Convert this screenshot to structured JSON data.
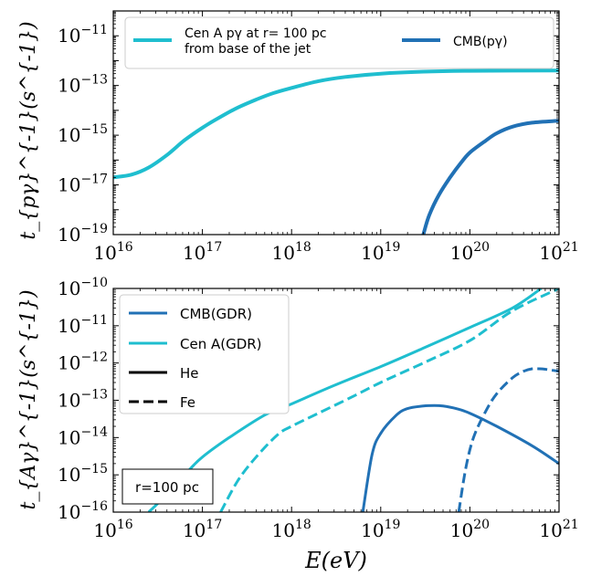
{
  "colors": {
    "cmb": "#2171b5",
    "cena": "#1fbecf",
    "axis": "#000000"
  },
  "chart_data": [
    {
      "type": "line",
      "panel": "top",
      "xscale": "log",
      "yscale": "log",
      "xlim": [
        1e+16,
        1e+21
      ],
      "ylim": [
        1e-19,
        1e-10
      ],
      "ylabel": "t_{pγ}^{-1}(s^{-1})",
      "x_ticks": [
        {
          "base": "10",
          "exp": "16"
        },
        {
          "base": "10",
          "exp": "17"
        },
        {
          "base": "10",
          "exp": "18"
        },
        {
          "base": "10",
          "exp": "19"
        },
        {
          "base": "10",
          "exp": "20"
        },
        {
          "base": "10",
          "exp": "21"
        }
      ],
      "y_ticks": [
        {
          "base": "10",
          "exp": "−19"
        },
        {
          "base": "10",
          "exp": "−17"
        },
        {
          "base": "10",
          "exp": "−15"
        },
        {
          "base": "10",
          "exp": "−13"
        },
        {
          "base": "10",
          "exp": "−11"
        }
      ],
      "legend": {
        "placement": "top",
        "entries": [
          {
            "label": "Cen A pγ at r= 100 pc",
            "label2": "from base of the jet",
            "color": "cena"
          },
          {
            "label": "CMB(pγ)",
            "color": "cmb"
          }
        ]
      },
      "series": [
        {
          "name": "Cen A pγ at r= 100 pc from base of the jet",
          "color": "cena",
          "dash": "solid",
          "x": [
            1e+16,
            1.6e+16,
            2.5e+16,
            4e+16,
            6.3e+16,
            1e+17,
            1.6e+17,
            2.5e+17,
            4e+17,
            6.3e+17,
            1e+18,
            2e+18,
            4e+18,
            1e+19,
            3e+19,
            1e+20,
            1e+21
          ],
          "y": [
            2e-17,
            2.6e-17,
            5e-17,
            1.6e-16,
            6.3e-16,
            2e-15,
            5.5e-15,
            1.3e-14,
            2.7e-14,
            5e-14,
            8e-14,
            1.5e-13,
            2.2e-13,
            3e-13,
            3.6e-13,
            3.9e-13,
            4e-13
          ]
        },
        {
          "name": "CMB(pγ)",
          "color": "cmb",
          "dash": "solid",
          "x": [
            3e+19,
            3.5e+19,
            4.5e+19,
            6e+19,
            8e+19,
            1e+20,
            1.5e+20,
            2e+20,
            3e+20,
            5e+20,
            1e+21
          ],
          "y": [
            1e-19,
            6e-19,
            4e-18,
            2e-17,
            8e-17,
            2e-16,
            6e-16,
            1.2e-15,
            2.2e-15,
            3.2e-15,
            3.8e-15
          ]
        }
      ]
    },
    {
      "type": "line",
      "panel": "bottom",
      "xscale": "log",
      "yscale": "log",
      "xlim": [
        1e+16,
        1e+21
      ],
      "ylim": [
        1e-16,
        1e-10
      ],
      "xlabel": "E(eV)",
      "ylabel": "t_{Aγ}^{-1}(s^{-1})",
      "x_ticks": [
        {
          "base": "10",
          "exp": "16"
        },
        {
          "base": "10",
          "exp": "17"
        },
        {
          "base": "10",
          "exp": "18"
        },
        {
          "base": "10",
          "exp": "19"
        },
        {
          "base": "10",
          "exp": "20"
        },
        {
          "base": "10",
          "exp": "21"
        }
      ],
      "y_ticks": [
        {
          "base": "10",
          "exp": "−16"
        },
        {
          "base": "10",
          "exp": "−15"
        },
        {
          "base": "10",
          "exp": "−14"
        },
        {
          "base": "10",
          "exp": "−13"
        },
        {
          "base": "10",
          "exp": "−12"
        },
        {
          "base": "10",
          "exp": "−11"
        },
        {
          "base": "10",
          "exp": "−10"
        }
      ],
      "legend": {
        "placement": "top-left",
        "entries": [
          {
            "label": "CMB(GDR)",
            "color": "cmb",
            "dash": "solid"
          },
          {
            "label": "Cen A(GDR)",
            "color": "cena",
            "dash": "solid"
          },
          {
            "label": "He",
            "color": "axis",
            "dash": "solid"
          },
          {
            "label": "Fe",
            "color": "axis",
            "dash": "dashed"
          }
        ]
      },
      "annotation": "r=100 pc",
      "series": [
        {
          "name": "Cen A He",
          "color": "cena",
          "dash": "solid",
          "x": [
            2.5e+16,
            4e+16,
            7e+16,
            1e+17,
            2e+17,
            5e+17,
            1e+18,
            3e+18,
            1e+19,
            3e+19,
            1e+20,
            3e+20,
            6.3e+20
          ],
          "y": [
            1e-16,
            3e-16,
            1.3e-15,
            3e-15,
            1e-14,
            4e-14,
            8e-14,
            2.5e-13,
            8e-13,
            2.5e-12,
            9e-12,
            3e-11,
            1e-10
          ]
        },
        {
          "name": "Cen A Fe",
          "color": "cena",
          "dash": "dashed",
          "x": [
            1.6e+17,
            2.5e+17,
            4e+17,
            7e+17,
            1e+18,
            2e+18,
            5e+18,
            1e+19,
            3e+19,
            1e+20,
            3e+20,
            1e+21
          ],
          "y": [
            1e-16,
            7e-16,
            3e-15,
            1.2e-14,
            2e-14,
            4.5e-14,
            1.3e-13,
            3e-13,
            1e-12,
            4e-12,
            2.5e-11,
            1e-10
          ]
        },
        {
          "name": "CMB He",
          "color": "cmb",
          "dash": "solid",
          "x": [
            6.3e+18,
            8e+18,
            1e+19,
            1.5e+19,
            2e+19,
            3e+19,
            4e+19,
            5e+19,
            7e+19,
            1e+20,
            2e+20,
            5e+20,
            1e+21
          ],
          "y": [
            1e-16,
            3.5e-15,
            1.3e-14,
            4e-14,
            6e-14,
            7e-14,
            7.2e-14,
            7e-14,
            6e-14,
            4.5e-14,
            2e-14,
            6e-15,
            2e-15
          ]
        },
        {
          "name": "CMB Fe",
          "color": "cmb",
          "dash": "dashed",
          "x": [
            7.5e+19,
            9e+19,
            1.1e+20,
            1.5e+20,
            2e+20,
            3e+20,
            4e+20,
            5e+20,
            6e+20,
            7e+20,
            1e+21
          ],
          "y": [
            1e-16,
            1.5e-15,
            1e-14,
            5e-14,
            1.5e-13,
            4e-13,
            6e-13,
            7e-13,
            7e-13,
            6.8e-13,
            6e-13
          ]
        }
      ]
    }
  ]
}
